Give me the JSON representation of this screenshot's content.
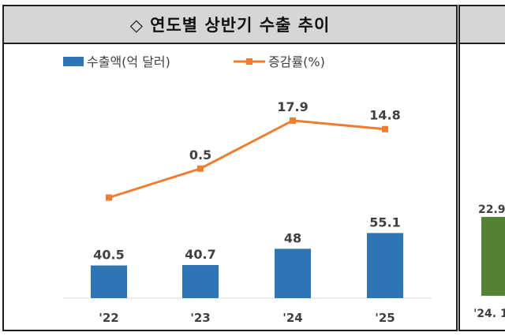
{
  "left_panel": {
    "title": "◇ 연도별 상반기 수출 추이"
  },
  "right_panel": {
    "partial_value": "22.9",
    "partial_tick": "'24. 1"
  },
  "chart_data": {
    "type": "bar+line",
    "categories": [
      "'22",
      "'23",
      "'24",
      "'25"
    ],
    "series": [
      {
        "name": "수출액(억 달러)",
        "type": "bar",
        "values": [
          40.5,
          40.7,
          48,
          55.1
        ],
        "labels": [
          "40.5",
          "40.7",
          "48",
          "55.1"
        ],
        "color": "#2e75b6"
      },
      {
        "name": "증감률(%)",
        "type": "line",
        "values": [
          -10,
          0.5,
          17.9,
          14.8
        ],
        "labels": [
          "",
          "0.5",
          "17.9",
          "14.8"
        ],
        "color": "#ed7d31"
      }
    ],
    "legend_position": "top"
  },
  "colors": {
    "bar": "#2e75b6",
    "line": "#ed7d31",
    "right_bar": "#548235"
  }
}
